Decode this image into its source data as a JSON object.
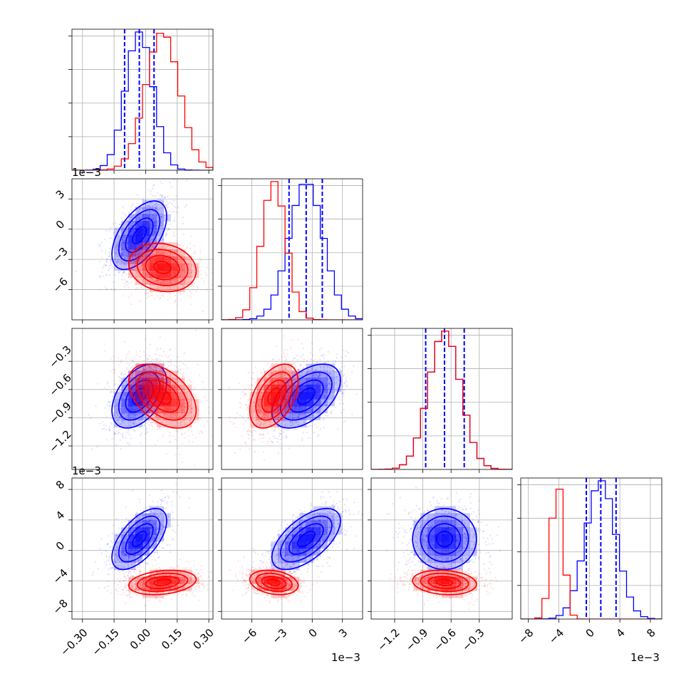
{
  "colors": {
    "blue": "#0000ff",
    "red": "#ff0000",
    "grid": "#b0b0b0"
  },
  "axes_text": {
    "p0_offset": "1e−3",
    "p1_offset": "1e−3",
    "p3_offset": "1e−3",
    "p1_bottom_offset": "1e−3",
    "p3_bottom_offset": "1e−3"
  },
  "chart_data": {
    "type": "corner",
    "grid": true,
    "params": [
      {
        "range": [
          -0.35,
          0.32
        ],
        "ticks": [
          -0.3,
          -0.15,
          0.0,
          0.15,
          0.3
        ],
        "tick_labels": [
          "−0.30",
          "−0.15",
          "0.00",
          "0.15",
          "0.30"
        ]
      },
      {
        "range": [
          -9.0,
          5.0
        ],
        "ticks": [
          -6,
          -3,
          0,
          3
        ],
        "tick_labels": [
          "−6",
          "−3",
          "0",
          "3"
        ],
        "offset_label": "1e−3"
      },
      {
        "range": [
          -1.45,
          0.05
        ],
        "ticks": [
          -1.2,
          -0.9,
          -0.6,
          -0.3
        ],
        "tick_labels": [
          "−1.2",
          "−0.9",
          "−0.6",
          "−0.3"
        ],
        "offset_label": "1e−3"
      },
      {
        "range": [
          -9.0,
          9.5
        ],
        "ticks": [
          -8,
          -4,
          0,
          4,
          8
        ],
        "tick_labels": [
          "−8",
          "−4",
          "0",
          "4",
          "8"
        ],
        "offset_label": "1e−3"
      }
    ],
    "series": [
      {
        "color": "blue",
        "mean": [
          -0.03,
          -0.6,
          -0.67,
          1.5
        ],
        "sigma": [
          0.065,
          1.7,
          0.17,
          2.0
        ],
        "quantiles": [
          [
            -0.1,
            -0.03,
            0.04
          ],
          [
            -2.3,
            -0.6,
            1.0
          ],
          [
            -0.87,
            -0.67,
            -0.46
          ],
          [
            -0.4,
            1.5,
            3.5
          ]
        ]
      },
      {
        "color": "red",
        "mean": [
          0.08,
          -3.8,
          -0.67,
          -4.2
        ],
        "sigma": [
          0.08,
          1.2,
          0.17,
          0.8
        ]
      }
    ],
    "correlations": {
      "blue": {
        "1-0": 0.55,
        "2-0": 0.45,
        "2-1": 0.5,
        "3-0": 0.6,
        "3-1": 0.6,
        "3-2": 0.0
      },
      "red": {
        "1-0": -0.15,
        "2-0": -0.45,
        "2-1": 0.45,
        "3-0": 0.25,
        "3-1": -0.25,
        "3-2": -0.15
      }
    }
  }
}
